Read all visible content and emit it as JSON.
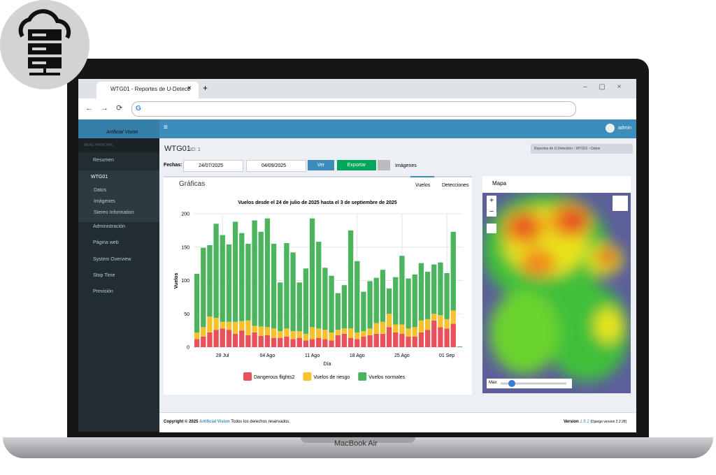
{
  "device": "MacBook Air",
  "browser": {
    "tab_title": "WTG01 - Reportes de U-Detecti"
  },
  "sidebar": {
    "brand": "Artificial Vision",
    "section": "MENÚ PRINCIPAL",
    "items": [
      "Resumen",
      "WTG01",
      "Administración",
      "Página web",
      "System Overview",
      "Stop Time",
      "Previsión"
    ],
    "sub_items": [
      "Datos",
      "Imágenes",
      "Stereo Information"
    ]
  },
  "topbar": {
    "user": "admin"
  },
  "header": {
    "title": "WTG01",
    "id_label": "ID: 1",
    "breadcrumb": [
      "Reportes de U-Detection",
      "WTG01",
      "Datos"
    ]
  },
  "filters": {
    "label": "Fechas:",
    "from": "24/07/2025",
    "to": "04/09/2025",
    "buttons": [
      "Ver",
      "Exportar",
      "Imágenes"
    ]
  },
  "charts_panel": {
    "title": "Gráficas",
    "tabs": [
      "Vuelos",
      "Detecciones"
    ]
  },
  "map_panel": {
    "title": "Mapa",
    "slider_label": "Max"
  },
  "footer": {
    "copyright": "Copyright © 2025",
    "brand": "Artificial Vision",
    "rights": "Todos los derechos reservados.",
    "version_label": "Version",
    "version": "1.9.2",
    "django": "(Django version 2.2.28)"
  },
  "chart_data": {
    "type": "bar",
    "stacked": true,
    "title": "Vuelos desde el 24 de julio de 2025 hasta el 3 de septiembre de 2025",
    "x_label": "Día",
    "y_label": "Vuelos",
    "categories": [
      null,
      null,
      null,
      null,
      "28 Jul",
      null,
      null,
      null,
      null,
      null,
      null,
      "04 Ago",
      null,
      null,
      null,
      null,
      null,
      null,
      "11 Ago",
      null,
      null,
      null,
      null,
      null,
      null,
      "18 Ago",
      null,
      null,
      null,
      null,
      null,
      null,
      "25 Ago",
      null,
      null,
      null,
      null,
      null,
      null,
      "01 Sep",
      null,
      null
    ],
    "series": [
      {
        "name": "Dangerous flights2",
        "color": "#e8505b",
        "values": [
          12,
          16,
          22,
          26,
          28,
          26,
          20,
          25,
          18,
          22,
          17,
          18,
          14,
          14,
          16,
          12,
          14,
          10,
          12,
          14,
          12,
          10,
          18,
          20,
          14,
          12,
          16,
          18,
          20,
          20,
          30,
          22,
          20,
          16,
          16,
          22,
          26,
          40,
          30,
          28,
          35,
          0
        ]
      },
      {
        "name": "Vuelos de riesgo",
        "color": "#f5c22e",
        "values": [
          10,
          14,
          24,
          18,
          10,
          12,
          18,
          14,
          22,
          10,
          14,
          12,
          14,
          10,
          12,
          12,
          10,
          10,
          18,
          14,
          14,
          12,
          8,
          8,
          14,
          10,
          8,
          10,
          16,
          18,
          20,
          12,
          14,
          12,
          14,
          18,
          16,
          10,
          18,
          14,
          20,
          0
        ]
      },
      {
        "name": "Vuelos normales",
        "color": "#4cb45f",
        "values": [
          88,
          119,
          107,
          141,
          130,
          116,
          150,
          132,
          115,
          158,
          142,
          163,
          127,
          73,
          128,
          118,
          73,
          98,
          163,
          130,
          93,
          85,
          55,
          65,
          147,
          107,
          59,
          71,
          68,
          78,
          38,
          71,
          103,
          75,
          79,
          86,
          71,
          74,
          79,
          69,
          118,
          1
        ]
      }
    ],
    "ylim": [
      0,
      200
    ],
    "yticks": [
      0,
      50,
      100,
      150,
      200
    ],
    "grid": true
  }
}
